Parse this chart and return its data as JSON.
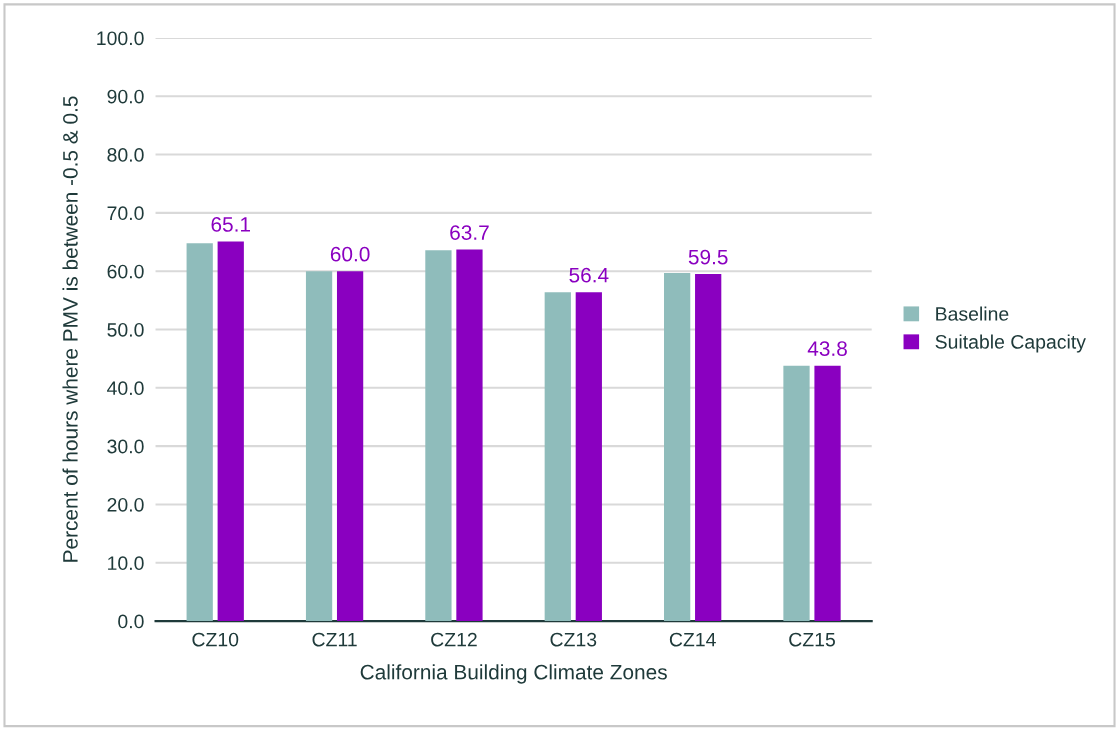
{
  "chart_data": {
    "type": "bar",
    "xlabel": "California Building Climate Zones",
    "ylabel": "Percent of hours where PMV is between -0.5 & 0.5",
    "categories": [
      "CZ10",
      "CZ11",
      "CZ12",
      "CZ13",
      "CZ14",
      "CZ15"
    ],
    "series": [
      {
        "name": "Baseline",
        "color": "#8fbcbb",
        "values": [
          64.8,
          60.0,
          63.6,
          56.4,
          59.7,
          43.8
        ]
      },
      {
        "name": "Suitable Capacity",
        "color": "#8a00c0",
        "values": [
          65.1,
          60.0,
          63.7,
          56.4,
          59.5,
          43.8
        ],
        "value_labels": [
          "65.1",
          "60.0",
          "63.7",
          "56.4",
          "59.5",
          "43.8"
        ]
      }
    ],
    "ylim": [
      0,
      100
    ],
    "yticks": [
      {
        "value": 0,
        "label": "0.0"
      },
      {
        "value": 10,
        "label": "10.0"
      },
      {
        "value": 20,
        "label": "20.0"
      },
      {
        "value": 30,
        "label": "30.0"
      },
      {
        "value": 40,
        "label": "40.0"
      },
      {
        "value": 50,
        "label": "50.0"
      },
      {
        "value": 60,
        "label": "60.0"
      },
      {
        "value": 70,
        "label": "70.0"
      },
      {
        "value": 80,
        "label": "80.0"
      },
      {
        "value": 90,
        "label": "90.0"
      },
      {
        "value": 100,
        "label": "100.0"
      }
    ],
    "grid": "y",
    "legend": "right"
  }
}
